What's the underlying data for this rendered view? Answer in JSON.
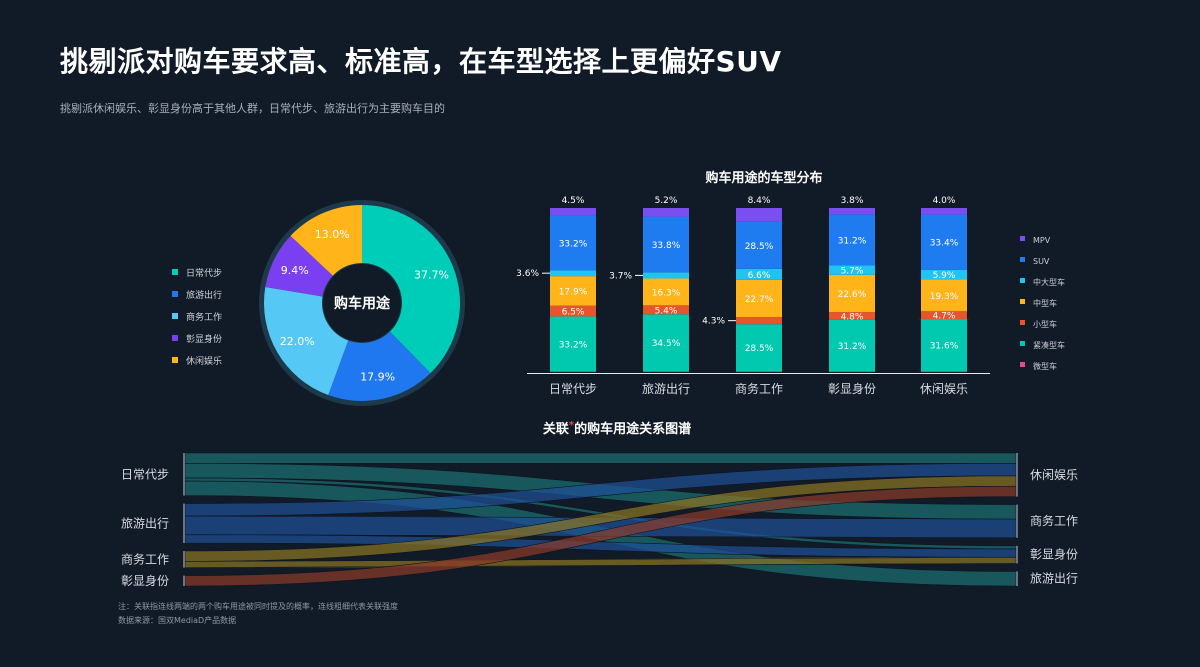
{
  "title": "挑剔派对购车要求高、标准高，在车型选择上更偏好SUV",
  "subtitle": "挑剔派休闲娱乐、彰显身份高于其他人群，日常代步、旅游出行为主要购车目的",
  "notes": {
    "note": "注：关联指连线两端的两个购车用途被同时提及的概率，连线粗细代表关联强度",
    "source": "数据来源：国双MediaD产品数据"
  },
  "chart_data": [
    {
      "type": "pie",
      "variant": "donut",
      "center_label": "购车用途",
      "legend_position": "left",
      "categories": [
        "日常代步",
        "旅游出行",
        "商务工作",
        "彰显身份",
        "休闲娱乐"
      ],
      "values": [
        37.7,
        17.9,
        22.0,
        9.4,
        13.0
      ],
      "value_labels": [
        "37.7%",
        "17.9%",
        "22.0%",
        "9.4%",
        "13.0%"
      ],
      "colors": [
        "#00cdb7",
        "#1f78f0",
        "#56c8f5",
        "#7b3ff2",
        "#ffb41a"
      ]
    },
    {
      "type": "bar",
      "variant": "stacked-100",
      "title": "购车用途的车型分布",
      "legend_position": "right",
      "categories": [
        "日常代步",
        "旅游出行",
        "商务工作",
        "彰显身份",
        "休闲娱乐"
      ],
      "series": [
        {
          "name": "微型车",
          "color": "#e84a8a",
          "values": [
            0.5,
            0.5,
            0.5,
            0.5,
            0.5
          ],
          "labels": [
            "",
            "",
            "",
            "",
            ""
          ]
        },
        {
          "name": "紧凑型车",
          "color": "#00c9b0",
          "values": [
            33.2,
            34.5,
            28.5,
            31.2,
            31.6
          ],
          "labels": [
            "33.2%",
            "34.5%",
            "28.5%",
            "31.2%",
            "31.6%"
          ]
        },
        {
          "name": "小型车",
          "color": "#e8552a",
          "values": [
            6.5,
            5.4,
            4.3,
            4.8,
            4.7
          ],
          "labels": [
            "6.5%",
            "5.4%",
            "4.3%",
            "4.8%",
            "4.7%"
          ]
        },
        {
          "name": "中型车",
          "color": "#ffb41a",
          "values": [
            17.9,
            16.3,
            22.7,
            22.6,
            19.3
          ],
          "labels": [
            "17.9%",
            "16.3%",
            "22.7%",
            "22.6%",
            "19.3%"
          ]
        },
        {
          "name": "中大型车",
          "color": "#20c4f2",
          "values": [
            3.6,
            3.7,
            6.6,
            5.7,
            5.9
          ],
          "labels": [
            "3.6%",
            "3.7%",
            "6.6%",
            "5.7%",
            "5.9%"
          ]
        },
        {
          "name": "SUV",
          "color": "#1f7cf0",
          "values": [
            33.2,
            33.8,
            28.5,
            31.2,
            33.4
          ],
          "labels": [
            "33.2%",
            "33.8%",
            "28.5%",
            "31.2%",
            "33.4%"
          ]
        },
        {
          "name": "MPV",
          "color": "#7b4ef2",
          "values": [
            4.5,
            5.2,
            8.4,
            3.8,
            4.0
          ],
          "labels": [
            "4.5%",
            "5.2%",
            "8.4%",
            "3.8%",
            "4.0%"
          ]
        }
      ],
      "legend_order": [
        "MPV",
        "SUV",
        "中大型车",
        "中型车",
        "小型车",
        "紧凑型车",
        "微型车"
      ],
      "outside_labels": [
        {
          "category": "日常代步",
          "series": "中大型车",
          "side": "left"
        },
        {
          "category": "旅游出行",
          "series": "中大型车",
          "side": "left"
        },
        {
          "category": "商务工作",
          "series": "小型车",
          "side": "left"
        }
      ]
    },
    {
      "type": "sankey",
      "title_parts": [
        "关联",
        "*",
        "的购车用途关系图谱"
      ],
      "left_nodes": [
        "日常代步",
        "旅游出行",
        "商务工作",
        "彰显身份"
      ],
      "right_nodes": [
        "休闲娱乐",
        "商务工作",
        "彰显身份",
        "旅游出行"
      ],
      "node_colors": {
        "日常代步": "#1c6f70",
        "旅游出行": "#1f4f96",
        "商务工作": "#8a7322",
        "彰显身份": "#8a3a2a"
      },
      "links": [
        {
          "source": "日常代步",
          "target": "休闲娱乐",
          "value": 10
        },
        {
          "source": "日常代步",
          "target": "商务工作",
          "value": 14
        },
        {
          "source": "日常代步",
          "target": "彰显身份",
          "value": 3
        },
        {
          "source": "日常代步",
          "target": "旅游出行",
          "value": 14
        },
        {
          "source": "旅游出行",
          "target": "休闲娱乐",
          "value": 12
        },
        {
          "source": "旅游出行",
          "target": "商务工作",
          "value": 18
        },
        {
          "source": "旅游出行",
          "target": "彰显身份",
          "value": 8
        },
        {
          "source": "商务工作",
          "target": "休闲娱乐",
          "value": 10
        },
        {
          "source": "商务工作",
          "target": "彰显身份",
          "value": 6
        },
        {
          "source": "彰显身份",
          "target": "休闲娱乐",
          "value": 10
        }
      ]
    }
  ]
}
